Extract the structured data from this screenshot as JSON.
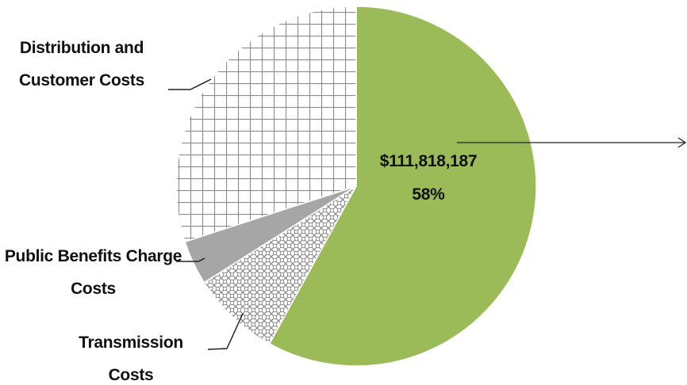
{
  "chart_data": {
    "type": "pie",
    "categories": [
      null,
      "Transmission Costs",
      "Public Benefits Charge Costs",
      "Distribution and Customer Costs"
    ],
    "values": [
      58,
      8,
      4,
      30
    ],
    "value_labels": [
      "58%",
      null,
      null,
      null
    ],
    "amounts": [
      111818187,
      null,
      null,
      null
    ],
    "amount_labels": [
      "$111,818,187",
      null,
      null,
      null
    ],
    "colors": [
      "#9bbb59",
      "url(#dots)",
      "#a6a6a6",
      "url(#grid)"
    ]
  }
}
